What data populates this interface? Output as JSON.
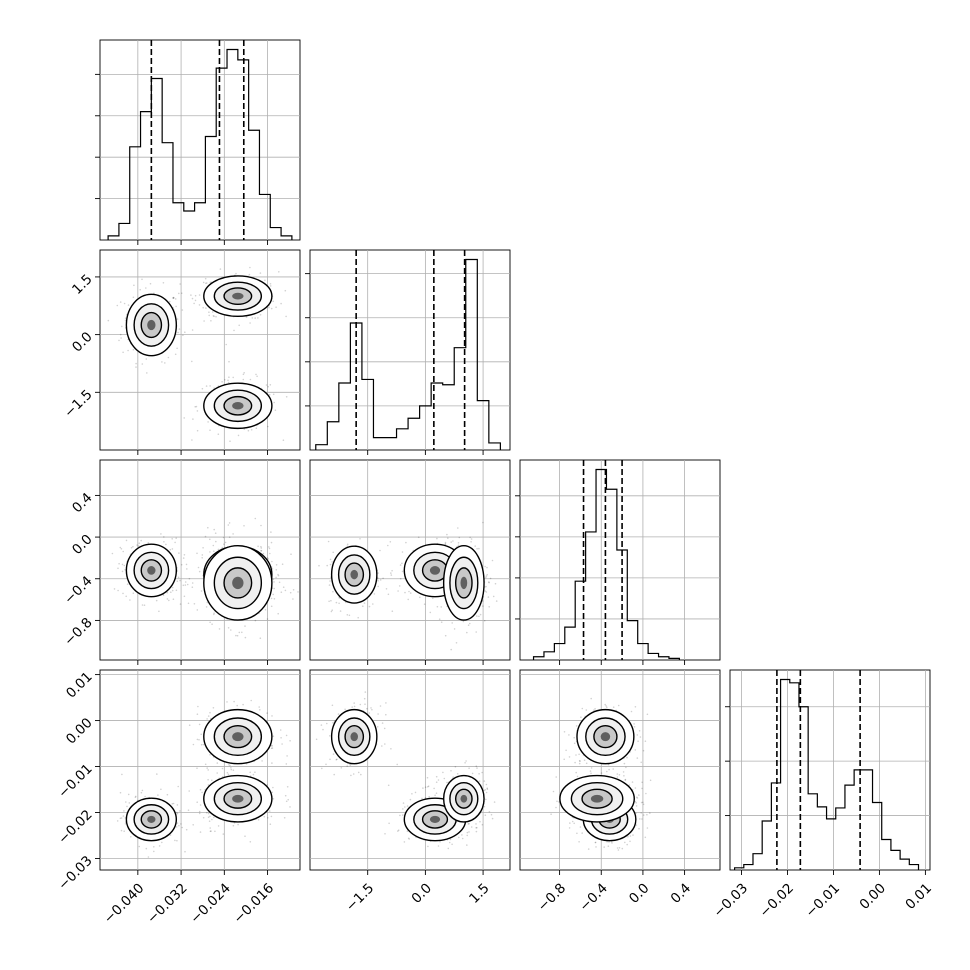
{
  "chart_data": {
    "type": "corner",
    "ndim": 4,
    "grid": true,
    "params": [
      {
        "range": [
          -0.047,
          -0.01
        ],
        "ticks": [
          -0.04,
          -0.032,
          -0.024,
          -0.016
        ],
        "tick_labels": [
          "−0.040",
          "−0.032",
          "−0.024",
          "−0.016"
        ],
        "quantiles": [
          -0.0375,
          -0.0249,
          -0.0204
        ],
        "hist_edges": [
          -0.0455,
          -0.0435,
          -0.0415,
          -0.0395,
          -0.0375,
          -0.0355,
          -0.0335,
          -0.0315,
          -0.0295,
          -0.0275,
          -0.0255,
          -0.0235,
          -0.0215,
          -0.0195,
          -0.0175,
          -0.0155,
          -0.0135,
          -0.0115
        ],
        "hist_counts": [
          2,
          8,
          45,
          62,
          78,
          47,
          18,
          14,
          18,
          50,
          83,
          92,
          87,
          53,
          22,
          6,
          2
        ]
      },
      {
        "range": [
          -3.0,
          2.2
        ],
        "ticks": [
          -1.5,
          0.0,
          1.5
        ],
        "tick_labels": [
          "−1.5",
          "0.0",
          "1.5"
        ],
        "quantiles": [
          -1.8,
          0.22,
          1.02
        ],
        "hist_edges": [
          -2.85,
          -2.55,
          -2.25,
          -1.95,
          -1.65,
          -1.35,
          -1.05,
          -0.75,
          -0.45,
          -0.15,
          0.15,
          0.45,
          0.75,
          1.05,
          1.35,
          1.65,
          1.95
        ],
        "hist_counts": [
          3,
          16,
          38,
          72,
          40,
          7,
          7,
          12,
          18,
          25,
          38,
          37,
          58,
          108,
          28,
          4
        ]
      },
      {
        "range": [
          -1.18,
          0.74
        ],
        "ticks": [
          -0.8,
          -0.4,
          0.0,
          0.4
        ],
        "tick_labels": [
          "−0.8",
          "−0.4",
          "0.0",
          "0.4"
        ],
        "quantiles": [
          -0.57,
          -0.36,
          -0.2
        ],
        "hist_edges": [
          -1.05,
          -0.95,
          -0.85,
          -0.75,
          -0.65,
          -0.55,
          -0.45,
          -0.35,
          -0.25,
          -0.15,
          -0.05,
          0.05,
          0.15,
          0.25,
          0.35
        ],
        "hist_counts": [
          2,
          5,
          10,
          20,
          48,
          78,
          116,
          104,
          67,
          24,
          10,
          4,
          2,
          1
        ]
      },
      {
        "range": [
          -0.0325,
          0.011
        ],
        "ticks": [
          -0.03,
          -0.02,
          -0.01,
          0.0,
          0.01
        ],
        "tick_labels": [
          "−0.03",
          "−0.02",
          "−0.01",
          "0.00",
          "0.01"
        ],
        "quantiles": [
          -0.0223,
          -0.0172,
          -0.0042
        ],
        "hist_edges": [
          -0.0315,
          -0.0295,
          -0.0275,
          -0.0255,
          -0.0235,
          -0.0215,
          -0.0195,
          -0.0175,
          -0.0155,
          -0.0135,
          -0.0115,
          -0.0095,
          -0.0075,
          -0.0055,
          -0.0035,
          -0.0015,
          0.0005,
          0.0025,
          0.0045,
          0.0065,
          0.0085
        ],
        "hist_counts": [
          2,
          5,
          15,
          45,
          80,
          175,
          172,
          150,
          70,
          58,
          47,
          57,
          78,
          92,
          92,
          62,
          28,
          18,
          10,
          5
        ]
      }
    ],
    "modes": [
      {
        "mean": [
          -0.0375,
          0.25,
          -0.32,
          -0.0215
        ],
        "sd": [
          0.0022,
          0.38,
          0.12,
          0.0022
        ],
        "weight": 0.35
      },
      {
        "mean": [
          -0.0215,
          -1.85,
          -0.36,
          -0.0035
        ],
        "sd": [
          0.003,
          0.28,
          0.13,
          0.0028
        ],
        "weight": 0.3
      },
      {
        "mean": [
          -0.0215,
          1.0,
          -0.44,
          -0.017
        ],
        "sd": [
          0.003,
          0.25,
          0.17,
          0.0024
        ],
        "weight": 0.35
      }
    ]
  }
}
